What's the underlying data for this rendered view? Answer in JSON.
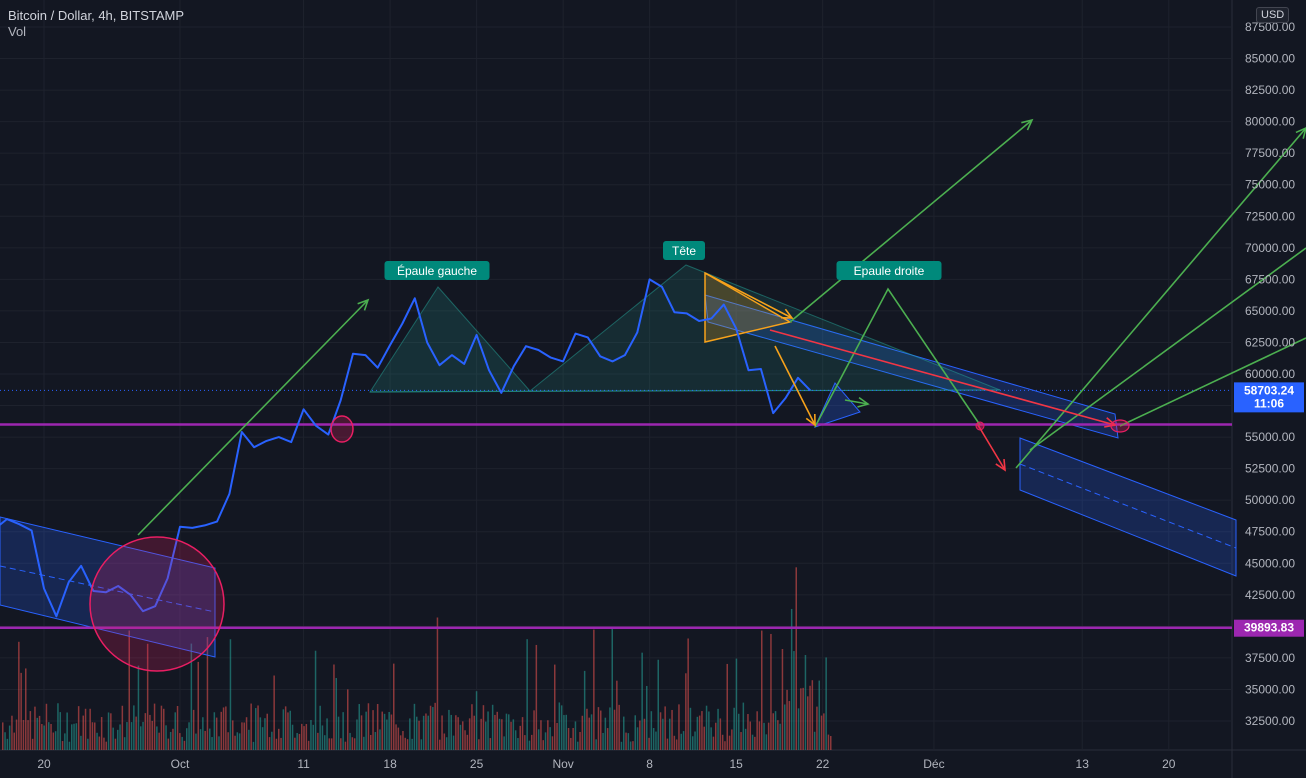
{
  "header": {
    "symbol": "Bitcoin / Dollar, 4h, BITSTAMP",
    "indicator": "Vol"
  },
  "currency_button": "USD",
  "price_labels": {
    "current_price": "58703.24",
    "countdown": "11:06",
    "support_level": "39893.83"
  },
  "annotations": {
    "left_shoulder": "Épaule gauche",
    "head": "Tête",
    "right_shoulder": "Epaule droite"
  },
  "colors": {
    "background": "#131722",
    "price_line": "#2962ff",
    "support_line": "#9c27b0",
    "arrow_up": "#4caf50",
    "arrow_down": "#f23645",
    "triangle": "#f7a21b",
    "label_bg": "#00897b",
    "channel": "#2962ff"
  },
  "chart_data": {
    "type": "line",
    "title": "Bitcoin / Dollar, 4h, BITSTAMP",
    "y_axis": {
      "position": "right",
      "ticks": [
        87500,
        85000,
        82500,
        80000,
        77500,
        75000,
        72500,
        70000,
        67500,
        65000,
        62500,
        60000,
        57500,
        55000,
        52500,
        50000,
        47500,
        45000,
        42500,
        40000,
        37500,
        35000,
        32500
      ],
      "tick_labels": [
        "87500.00",
        "85000.00",
        "82500.00",
        "80000.00",
        "77500.00",
        "75000.00",
        "72500.00",
        "70000.00",
        "67500.00",
        "65000.00",
        "62500.00",
        "60000.00",
        "57500.00",
        "55000.00",
        "52500.00",
        "50000.00",
        "47500.00",
        "45000.00",
        "42500.00",
        "40000.00",
        "37500.00",
        "35000.00",
        "32500.00"
      ],
      "range": [
        31000,
        89000
      ]
    },
    "x_axis": {
      "tick_labels": [
        "20",
        "Oct",
        "11",
        "18",
        "25",
        "Nov",
        "8",
        "15",
        "22",
        "Déc",
        "13",
        "20"
      ],
      "tick_dates": [
        "2021-09-20",
        "2021-10-01",
        "2021-10-11",
        "2021-10-18",
        "2021-10-25",
        "2021-11-01",
        "2021-11-08",
        "2021-11-15",
        "2021-11-22",
        "2021-12-01",
        "2021-12-13",
        "2021-12-20"
      ]
    },
    "grid": true,
    "series": [
      {
        "points": [
          [
            "2021-09-15",
            48000
          ],
          [
            "2021-09-16",
            47700
          ],
          [
            "2021-09-17",
            48500
          ],
          [
            "2021-09-18",
            48100
          ],
          [
            "2021-09-19",
            47600
          ],
          [
            "2021-09-20",
            43000
          ],
          [
            "2021-09-21",
            40800
          ],
          [
            "2021-09-22",
            43500
          ],
          [
            "2021-09-23",
            44800
          ],
          [
            "2021-09-24",
            42800
          ],
          [
            "2021-09-25",
            42700
          ],
          [
            "2021-09-26",
            43200
          ],
          [
            "2021-09-27",
            42500
          ],
          [
            "2021-09-28",
            41200
          ],
          [
            "2021-09-29",
            41600
          ],
          [
            "2021-09-30",
            43800
          ],
          [
            "2021-10-01",
            47900
          ],
          [
            "2021-10-02",
            47800
          ],
          [
            "2021-10-03",
            48000
          ],
          [
            "2021-10-04",
            48300
          ],
          [
            "2021-10-05",
            50500
          ],
          [
            "2021-10-06",
            55400
          ],
          [
            "2021-10-07",
            54200
          ],
          [
            "2021-10-08",
            54700
          ],
          [
            "2021-10-09",
            55000
          ],
          [
            "2021-10-10",
            54600
          ],
          [
            "2021-10-11",
            57200
          ],
          [
            "2021-10-12",
            55900
          ],
          [
            "2021-10-13",
            55200
          ],
          [
            "2021-10-14",
            57900
          ],
          [
            "2021-10-15",
            61600
          ],
          [
            "2021-10-16",
            61500
          ],
          [
            "2021-10-17",
            60500
          ],
          [
            "2021-10-18",
            62300
          ],
          [
            "2021-10-19",
            64000
          ],
          [
            "2021-10-20",
            66000
          ],
          [
            "2021-10-21",
            62500
          ],
          [
            "2021-10-22",
            60700
          ],
          [
            "2021-10-23",
            61500
          ],
          [
            "2021-10-24",
            60800
          ],
          [
            "2021-10-25",
            63100
          ],
          [
            "2021-10-26",
            60300
          ],
          [
            "2021-10-27",
            58500
          ],
          [
            "2021-10-28",
            60600
          ],
          [
            "2021-10-29",
            62200
          ],
          [
            "2021-10-30",
            61900
          ],
          [
            "2021-10-31",
            61300
          ],
          [
            "2021-11-01",
            61000
          ],
          [
            "2021-11-02",
            63200
          ],
          [
            "2021-11-03",
            62900
          ],
          [
            "2021-11-04",
            61400
          ],
          [
            "2021-11-05",
            61000
          ],
          [
            "2021-11-06",
            61500
          ],
          [
            "2021-11-07",
            63300
          ],
          [
            "2021-11-08",
            67500
          ],
          [
            "2021-11-09",
            66900
          ],
          [
            "2021-11-10",
            64900
          ],
          [
            "2021-11-11",
            64800
          ],
          [
            "2021-11-12",
            64200
          ],
          [
            "2021-11-13",
            64400
          ],
          [
            "2021-11-14",
            65500
          ],
          [
            "2021-11-15",
            63600
          ],
          [
            "2021-11-16",
            60300
          ],
          [
            "2021-11-17",
            60400
          ],
          [
            "2021-11-18",
            56900
          ],
          [
            "2021-11-19",
            58100
          ],
          [
            "2021-11-20",
            59700
          ],
          [
            "2021-11-21",
            58700
          ]
        ]
      }
    ],
    "horizontal_levels": [
      56000,
      39893.83
    ],
    "current_price": 58703.24,
    "volume": true
  }
}
